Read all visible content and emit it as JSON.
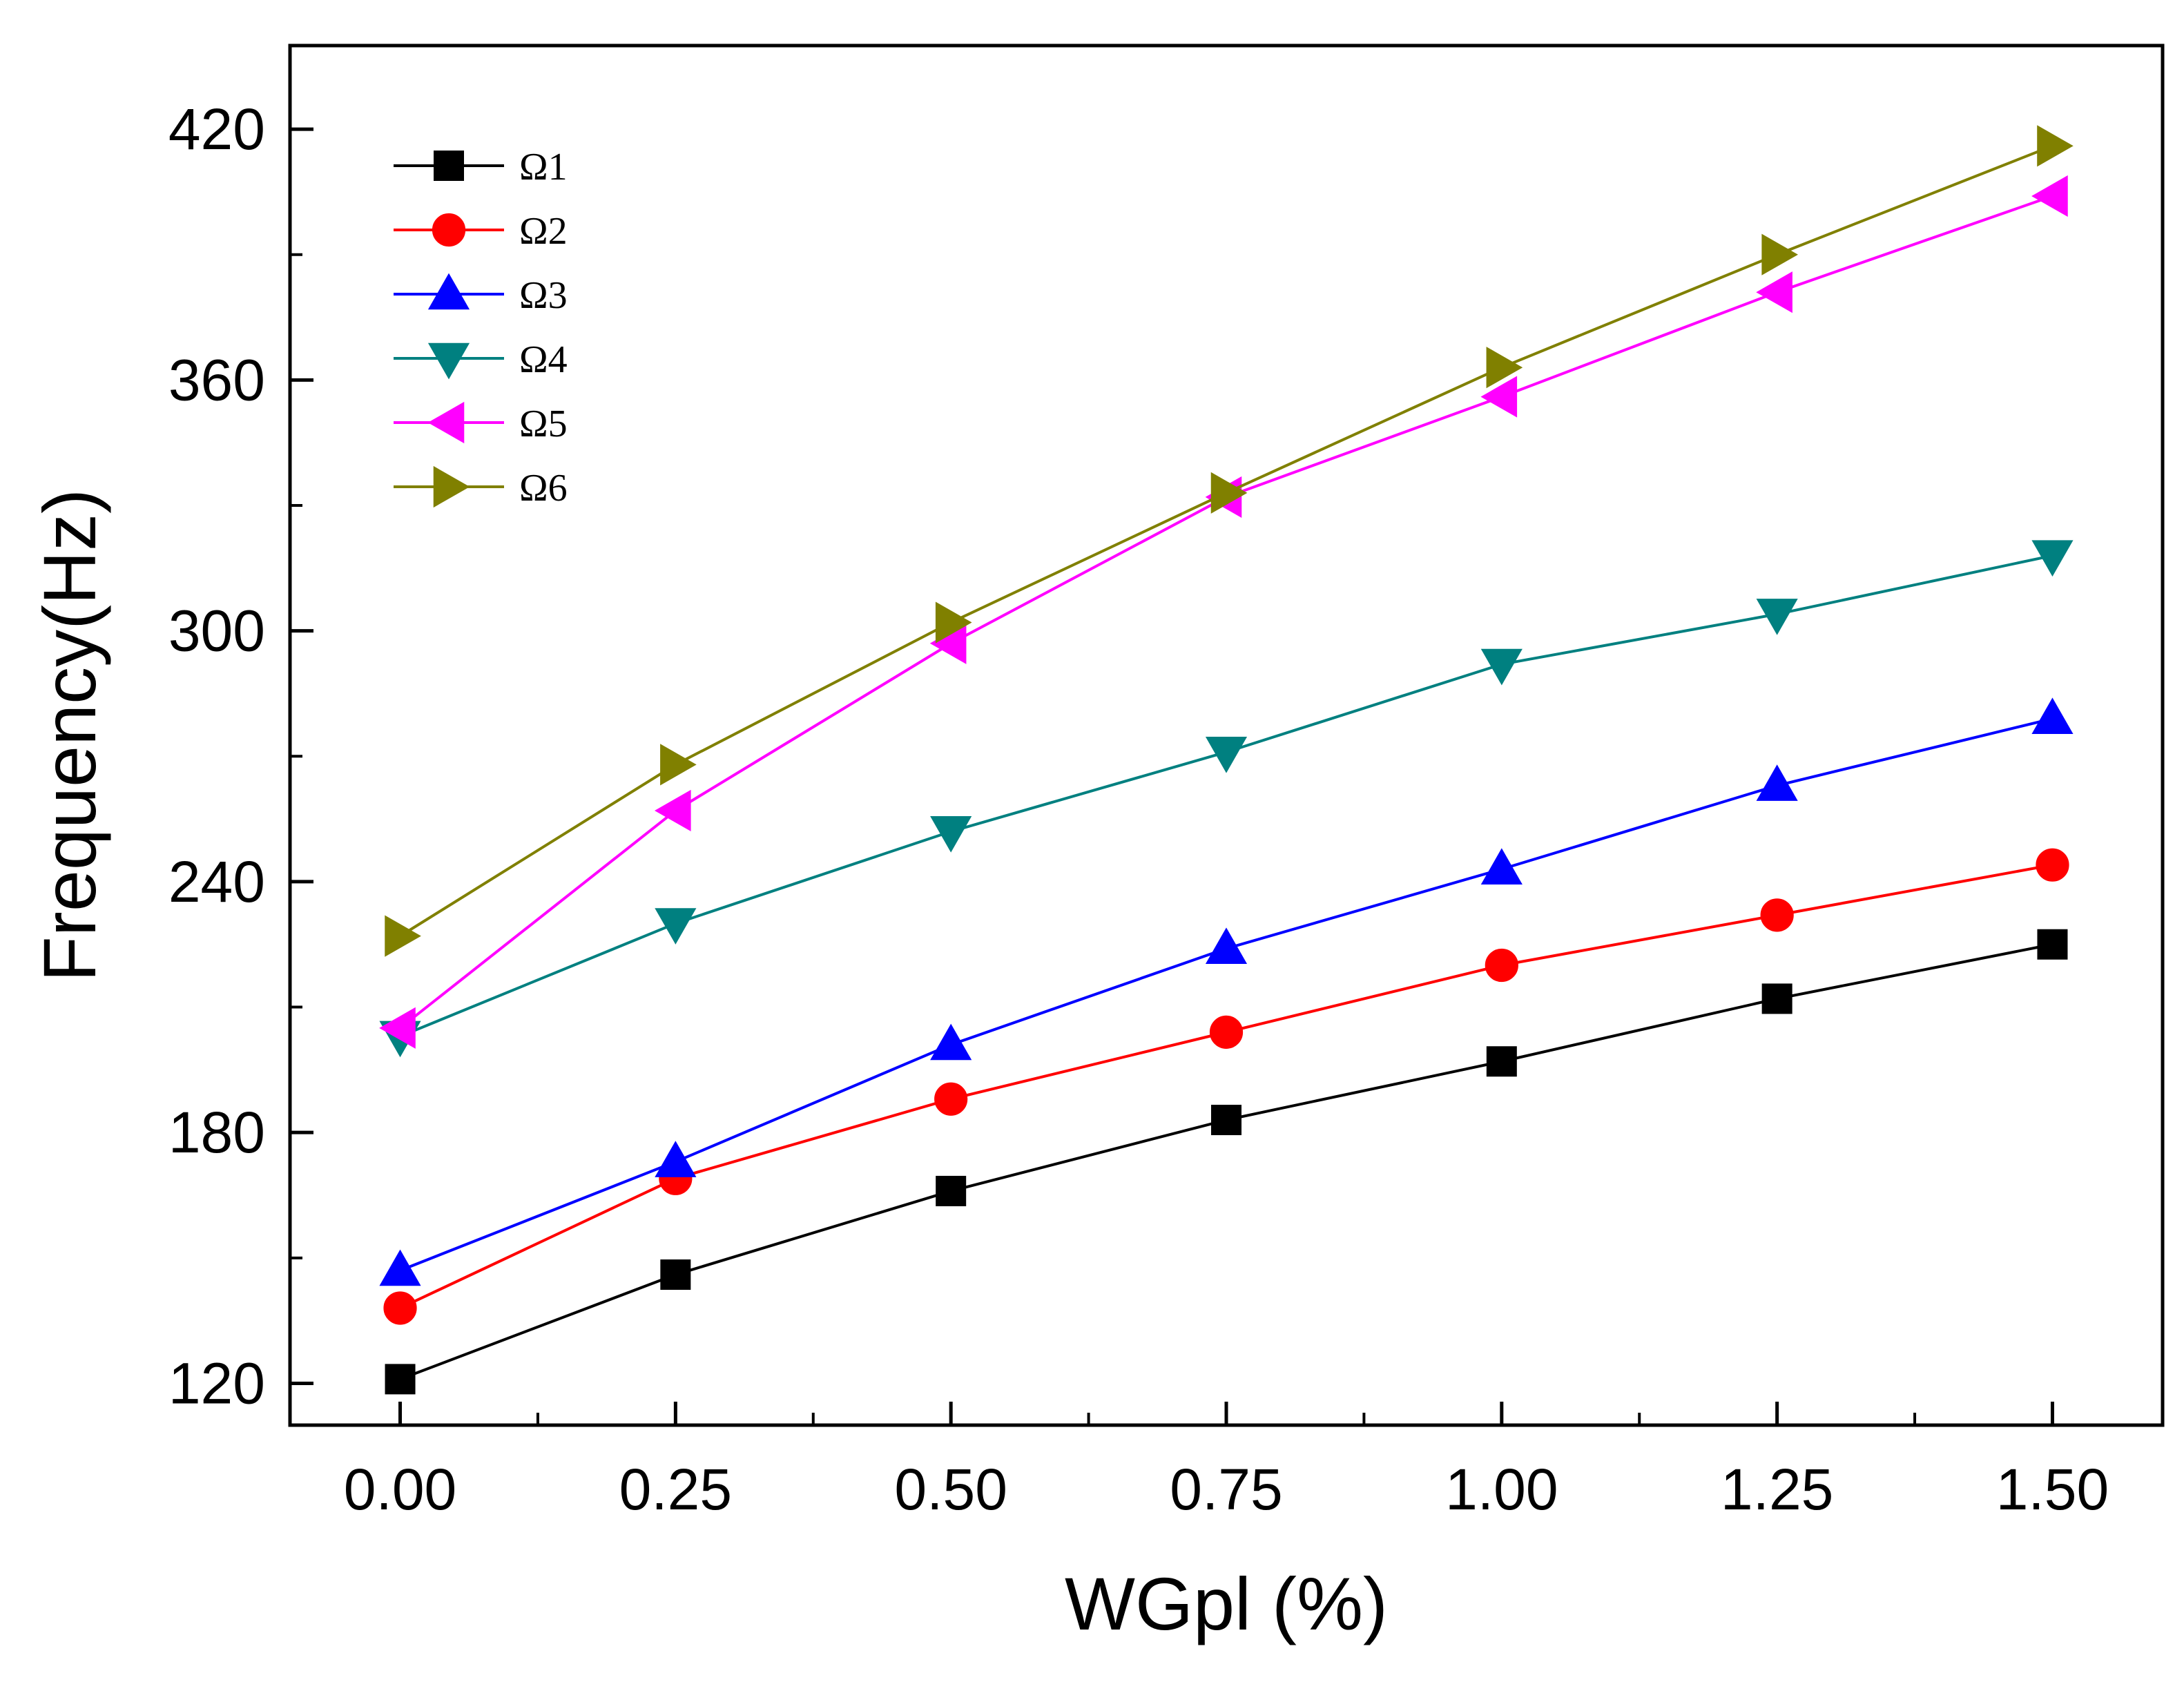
{
  "chart_data": {
    "type": "line",
    "title": "",
    "xlabel": "WGpl (%)",
    "ylabel": "Frequency(Hz)",
    "x": [
      0.0,
      0.25,
      0.5,
      0.75,
      1.0,
      1.25,
      1.5
    ],
    "x_tick_labels": [
      "0.00",
      "0.25",
      "0.50",
      "0.75",
      "1.00",
      "1.25",
      "1.50"
    ],
    "y_ticks": [
      120,
      180,
      240,
      300,
      360,
      420
    ],
    "xlim": [
      -0.1,
      1.6
    ],
    "ylim": [
      110,
      440
    ],
    "legend_position": "top-left",
    "series": [
      {
        "name": "Ω1",
        "color": "#000000",
        "marker": "square",
        "values": [
          121,
          146,
          166,
          183,
          197,
          212,
          225
        ]
      },
      {
        "name": "Ω2",
        "color": "#ff0000",
        "marker": "circle",
        "values": [
          138,
          169,
          188,
          204,
          220,
          232,
          244
        ]
      },
      {
        "name": "Ω3",
        "color": "#0000ff",
        "marker": "triangle-up",
        "values": [
          147,
          173,
          201,
          224,
          243,
          263,
          279
        ]
      },
      {
        "name": "Ω4",
        "color": "#008080",
        "marker": "triangle-down",
        "values": [
          203,
          230,
          252,
          271,
          292,
          304,
          318
        ]
      },
      {
        "name": "Ω5",
        "color": "#ff00ff",
        "marker": "triangle-left",
        "values": [
          205,
          257,
          297,
          332,
          356,
          381,
          404
        ]
      },
      {
        "name": "Ω6",
        "color": "#808000",
        "marker": "triangle-right",
        "values": [
          227,
          268,
          302,
          333,
          363,
          390,
          416
        ]
      }
    ]
  }
}
